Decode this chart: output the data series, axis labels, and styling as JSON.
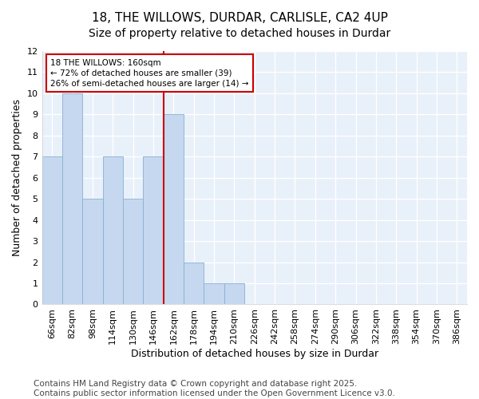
{
  "title1": "18, THE WILLOWS, DURDAR, CARLISLE, CA2 4UP",
  "title2": "Size of property relative to detached houses in Durdar",
  "xlabel": "Distribution of detached houses by size in Durdar",
  "ylabel": "Number of detached properties",
  "categories": [
    "66sqm",
    "82sqm",
    "98sqm",
    "114sqm",
    "130sqm",
    "146sqm",
    "162sqm",
    "178sqm",
    "194sqm",
    "210sqm",
    "226sqm",
    "242sqm",
    "258sqm",
    "274sqm",
    "290sqm",
    "306sqm",
    "322sqm",
    "338sqm",
    "354sqm",
    "370sqm",
    "386sqm"
  ],
  "values": [
    7,
    10,
    5,
    7,
    5,
    7,
    9,
    2,
    1,
    1,
    0,
    0,
    0,
    0,
    0,
    0,
    0,
    0,
    0,
    0,
    0
  ],
  "bar_color": "#c5d8ef",
  "bar_edge_color": "#8ab0d0",
  "background_color": "#e8f0fa",
  "grid_color": "#ffffff",
  "vline_color": "#cc0000",
  "vline_index": 6,
  "annotation_text": "18 THE WILLOWS: 160sqm\n← 72% of detached houses are smaller (39)\n26% of semi-detached houses are larger (14) →",
  "annotation_box_color": "#ffffff",
  "annotation_box_edge_color": "#cc0000",
  "ylim": [
    0,
    12
  ],
  "yticks": [
    0,
    1,
    2,
    3,
    4,
    5,
    6,
    7,
    8,
    9,
    10,
    11,
    12
  ],
  "footer": "Contains HM Land Registry data © Crown copyright and database right 2025.\nContains public sector information licensed under the Open Government Licence v3.0.",
  "title_fontsize": 11,
  "subtitle_fontsize": 10,
  "tick_fontsize": 8,
  "label_fontsize": 9,
  "footer_fontsize": 7.5
}
